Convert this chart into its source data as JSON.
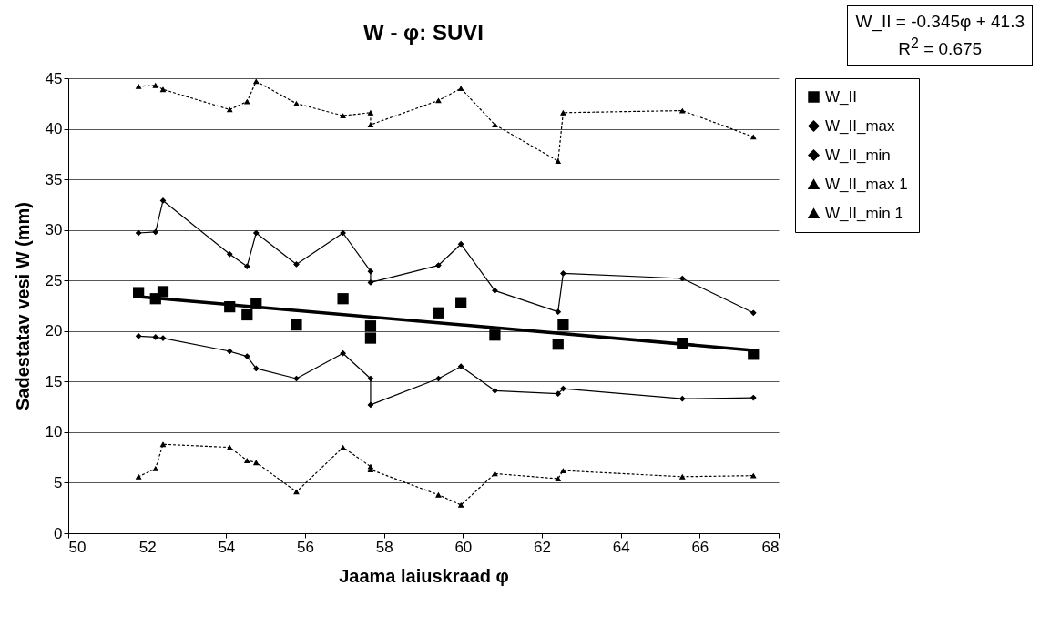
{
  "chart_data": {
    "type": "line",
    "title": "W - φ: SUVI",
    "xlabel": "Jaama laiuskraad φ",
    "ylabel": "Sadestatav vesi W (mm)",
    "annotations": [
      "W_II = -0.345φ + 41.3",
      "R$^{2}$ = 0.675"
    ],
    "x": [
      51.78,
      52.21,
      52.4,
      54.09,
      54.53,
      54.76,
      55.78,
      56.96,
      57.66,
      57.66,
      59.38,
      59.95,
      60.81,
      62.41,
      62.54,
      65.56,
      67.36
    ],
    "series": [
      {
        "name": "W_II",
        "type": "scatter",
        "marker": "square",
        "color": "#000000",
        "values": [
          23.8,
          23.2,
          23.9,
          22.4,
          21.6,
          22.7,
          20.6,
          23.2,
          20.5,
          19.3,
          21.8,
          22.8,
          19.6,
          18.7,
          20.6,
          18.8,
          17.7
        ]
      },
      {
        "name": "W_II_max",
        "marker": "diamond",
        "line_style": "solid",
        "color": "#000000",
        "values": [
          29.7,
          29.8,
          32.9,
          27.6,
          26.4,
          29.7,
          26.6,
          29.7,
          25.9,
          24.8,
          26.5,
          28.6,
          24.0,
          21.9,
          25.7,
          25.2,
          21.8
        ]
      },
      {
        "name": "W_II_min",
        "marker": "diamond",
        "line_style": "solid",
        "color": "#000000",
        "values": [
          19.5,
          19.4,
          19.3,
          18.0,
          17.5,
          16.3,
          15.3,
          17.8,
          15.3,
          12.7,
          15.3,
          16.5,
          14.1,
          13.8,
          14.3,
          13.3,
          13.4
        ]
      },
      {
        "name": "W_II_max 1",
        "marker": "triangle",
        "line_style": "dotted",
        "color": "#000000",
        "values": [
          44.2,
          44.3,
          43.9,
          41.9,
          42.7,
          44.7,
          42.5,
          41.3,
          41.6,
          40.4,
          42.8,
          44.0,
          40.4,
          36.8,
          41.6,
          41.8,
          39.2
        ]
      },
      {
        "name": "W_II_min 1",
        "marker": "triangle",
        "line_style": "dotted",
        "color": "#000000",
        "values": [
          5.6,
          6.4,
          8.8,
          8.5,
          7.2,
          7.0,
          4.1,
          8.5,
          6.6,
          6.3,
          3.8,
          2.8,
          5.9,
          5.4,
          6.2,
          5.6,
          5.7
        ]
      },
      {
        "marker": "none",
        "line_style": "solid",
        "color": "#000000",
        "x": [
          51.78,
          67.36
        ],
        "values": [
          23.4,
          18.1
        ]
      }
    ],
    "xlim": [
      50,
      68
    ],
    "xticks": [
      50,
      52,
      54,
      56,
      58,
      60,
      62,
      64,
      66,
      68
    ],
    "ylim": [
      0,
      45
    ],
    "yticks": [
      0,
      5,
      10,
      15,
      20,
      25,
      30,
      35,
      40,
      45
    ],
    "grid": "y",
    "legend": "right"
  }
}
